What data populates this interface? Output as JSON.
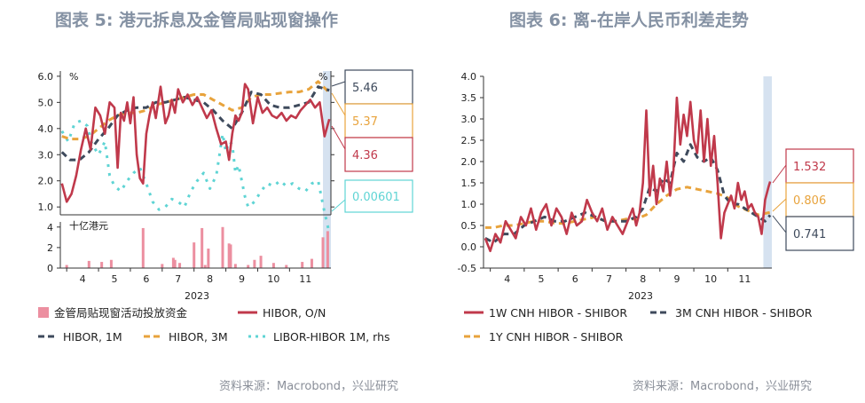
{
  "left": {
    "title": "图表 5: 港元拆息及金管局贴现窗操作",
    "source": "资料来源：Macrobond，兴业研究",
    "top_unit_left": "%",
    "top_unit_right": "%",
    "bottom_unit": "十亿港元",
    "year": "2023",
    "month_labels": [
      "4",
      "5",
      "6",
      "7",
      "8",
      "9",
      "10",
      "11"
    ],
    "legend": {
      "bars": "金管局贴现窗活动投放资金",
      "hibor_on": "HIBOR, O/N",
      "hibor_1m": "HIBOR, 1M",
      "hibor_3m": "HIBOR, 3M",
      "libor_hibor": "LIBOR-HIBOR 1M, rhs"
    },
    "callouts": {
      "hibor_1m": "5.46",
      "hibor_3m": "5.37",
      "hibor_on": "4.36",
      "libor_hibor": "0.00601"
    }
  },
  "right": {
    "title": "图表 6: 离-在岸人民币利差走势",
    "source": "资料来源：Macrobond，兴业研究",
    "year": "2023",
    "month_labels": [
      "4",
      "5",
      "6",
      "7",
      "8",
      "9",
      "10",
      "11"
    ],
    "legend": {
      "s1w": "1W CNH HIBOR - SHIBOR",
      "s3m": "3M CNH HIBOR - SHIBOR",
      "s1y": "1Y CNH HIBOR - SHIBOR"
    },
    "callouts": {
      "s1w": "1.532",
      "s1y": "0.806",
      "s3m": "0.741"
    }
  },
  "colors": {
    "red": "#c0394b",
    "navy": "#3e4a5c",
    "orange": "#e8a33c",
    "cyan": "#5fd4d4",
    "pink": "#ec8fa0",
    "highlight": "#d6e2f0",
    "title": "#8491a3"
  },
  "chart_data": [
    {
      "type": "line",
      "title": "图表 5: 港元拆息及金管局贴现窗操作",
      "xlabel": "2023",
      "x_ticks": [
        "4",
        "5",
        "6",
        "7",
        "8",
        "9",
        "10",
        "11"
      ],
      "x_range": [
        3.3,
        11.8
      ],
      "ylim": [
        0.7,
        6.2
      ],
      "yticks": [
        "1.0",
        "2.0",
        "3.0",
        "4.0",
        "5.0",
        "6.0"
      ],
      "series": [
        {
          "name": "HIBOR, O/N",
          "x": [
            3.35,
            3.5,
            3.65,
            3.8,
            3.95,
            4.1,
            4.25,
            4.4,
            4.55,
            4.7,
            4.85,
            5.0,
            5.1,
            5.2,
            5.3,
            5.4,
            5.5,
            5.6,
            5.7,
            5.8,
            5.9,
            6.0,
            6.1,
            6.2,
            6.3,
            6.45,
            6.6,
            6.7,
            6.8,
            6.9,
            7.0,
            7.15,
            7.3,
            7.45,
            7.6,
            7.75,
            7.9,
            8.05,
            8.2,
            8.35,
            8.5,
            8.6,
            8.7,
            8.8,
            8.9,
            9.0,
            9.1,
            9.2,
            9.35,
            9.5,
            9.65,
            9.8,
            9.95,
            10.1,
            10.25,
            10.4,
            10.55,
            10.7,
            10.85,
            11.0,
            11.15,
            11.3,
            11.45,
            11.6,
            11.75
          ],
          "values": [
            1.9,
            1.2,
            1.5,
            2.2,
            3.2,
            4.0,
            3.2,
            4.8,
            4.5,
            3.8,
            5.0,
            4.8,
            2.5,
            4.6,
            4.3,
            5.0,
            4.2,
            5.2,
            3.0,
            2.1,
            1.9,
            3.8,
            4.5,
            5.0,
            4.4,
            5.6,
            4.2,
            4.5,
            5.1,
            4.6,
            5.5,
            5.0,
            5.3,
            4.9,
            5.2,
            4.8,
            4.4,
            4.7,
            4.0,
            3.4,
            3.5,
            2.8,
            3.8,
            4.5,
            4.3,
            4.6,
            5.7,
            5.5,
            4.2,
            5.2,
            4.6,
            4.8,
            4.5,
            4.4,
            4.6,
            4.3,
            4.5,
            4.4,
            4.7,
            4.9,
            5.1,
            4.8,
            5.0,
            3.7,
            4.36
          ]
        },
        {
          "name": "HIBOR, 1M",
          "x": [
            3.35,
            3.6,
            3.9,
            4.2,
            4.5,
            4.8,
            5.1,
            5.4,
            5.7,
            6.0,
            6.3,
            6.6,
            6.9,
            7.2,
            7.5,
            7.8,
            8.1,
            8.4,
            8.7,
            9.0,
            9.3,
            9.6,
            9.9,
            10.2,
            10.5,
            10.8,
            11.1,
            11.4,
            11.75
          ],
          "values": [
            3.1,
            2.8,
            2.8,
            3.1,
            3.6,
            4.0,
            4.5,
            4.7,
            4.8,
            4.8,
            5.0,
            5.0,
            5.1,
            5.2,
            5.1,
            5.0,
            4.7,
            4.3,
            4.0,
            4.6,
            5.4,
            5.3,
            4.9,
            4.8,
            4.8,
            4.9,
            5.0,
            5.6,
            5.46
          ]
        },
        {
          "name": "HIBOR, 3M",
          "x": [
            3.35,
            3.6,
            3.9,
            4.2,
            4.5,
            4.8,
            5.1,
            5.4,
            5.7,
            6.0,
            6.3,
            6.6,
            6.9,
            7.2,
            7.5,
            7.8,
            8.1,
            8.4,
            8.7,
            9.0,
            9.3,
            9.6,
            9.9,
            10.2,
            10.5,
            10.8,
            11.1,
            11.4,
            11.75
          ],
          "values": [
            3.7,
            3.6,
            3.6,
            3.7,
            4.0,
            4.3,
            4.5,
            4.6,
            4.6,
            4.7,
            4.9,
            5.0,
            5.1,
            5.2,
            5.3,
            5.3,
            5.1,
            4.9,
            4.7,
            4.8,
            5.2,
            5.3,
            5.3,
            5.35,
            5.4,
            5.4,
            5.5,
            5.8,
            5.37
          ]
        },
        {
          "name": "LIBOR-HIBOR 1M, rhs",
          "x": [
            3.35,
            3.55,
            3.75,
            3.95,
            4.15,
            4.3,
            4.5,
            4.7,
            4.85,
            5.0,
            5.2,
            5.4,
            5.6,
            5.8,
            6.0,
            6.2,
            6.4,
            6.6,
            6.8,
            7.0,
            7.2,
            7.4,
            7.6,
            7.8,
            8.0,
            8.2,
            8.4,
            8.5,
            8.6,
            8.7,
            8.8,
            8.9,
            9.0,
            9.1,
            9.2,
            9.4,
            9.6,
            9.8,
            10.0,
            10.2,
            10.4,
            10.6,
            10.8,
            11.0,
            11.2,
            11.4,
            11.6,
            11.75
          ],
          "values": [
            3.9,
            3.5,
            4.2,
            4.3,
            4.1,
            3.4,
            3.0,
            3.5,
            2.2,
            1.8,
            1.6,
            2.0,
            2.3,
            2.5,
            1.9,
            1.2,
            0.9,
            1.0,
            1.3,
            1.2,
            1.0,
            1.6,
            2.0,
            2.3,
            1.7,
            2.2,
            3.8,
            3.1,
            3.5,
            3.4,
            2.3,
            2.6,
            2.0,
            1.4,
            1.0,
            1.2,
            1.6,
            1.9,
            1.8,
            2.0,
            1.8,
            1.9,
            1.7,
            1.6,
            1.9,
            2.0,
            0.8,
            0.00601
          ]
        }
      ]
    },
    {
      "type": "bar",
      "title": "金管局贴现窗活动投放资金",
      "ylabel": "十亿港元",
      "ylim": [
        0,
        4.5
      ],
      "yticks": [
        "0",
        "2",
        "4"
      ],
      "x": [
        3.5,
        4.2,
        4.6,
        4.9,
        5.9,
        6.5,
        6.85,
        6.9,
        7.05,
        7.5,
        7.75,
        7.85,
        7.95,
        8.4,
        8.6,
        8.65,
        8.8,
        9.2,
        9.4,
        9.6,
        10.0,
        10.4,
        10.9,
        11.2,
        11.55,
        11.7
      ],
      "values": [
        0.3,
        0.7,
        0.6,
        0.8,
        3.9,
        0.4,
        1.0,
        0.8,
        0.5,
        2.5,
        3.9,
        0.3,
        1.9,
        4.0,
        2.4,
        2.3,
        0.4,
        0.3,
        0.8,
        1.2,
        0.5,
        0.3,
        0.6,
        0.9,
        3.0,
        3.6
      ]
    },
    {
      "type": "line",
      "title": "图表 6: 离-在岸人民币利差走势",
      "xlabel": "2023",
      "x_ticks": [
        "4",
        "5",
        "6",
        "7",
        "8",
        "9",
        "10",
        "11"
      ],
      "x_range": [
        3.3,
        11.8
      ],
      "ylim": [
        -0.5,
        4.0
      ],
      "yticks": [
        "-0.5",
        "0.0",
        "0.5",
        "1.0",
        "1.5",
        "2.0",
        "2.5",
        "3.0",
        "3.5",
        "4.0"
      ],
      "series": [
        {
          "name": "1W CNH HIBOR - SHIBOR",
          "x": [
            3.35,
            3.5,
            3.65,
            3.8,
            3.95,
            4.1,
            4.25,
            4.4,
            4.55,
            4.7,
            4.85,
            5.0,
            5.15,
            5.3,
            5.45,
            5.6,
            5.75,
            5.9,
            6.05,
            6.2,
            6.35,
            6.5,
            6.65,
            6.8,
            6.95,
            7.1,
            7.25,
            7.4,
            7.55,
            7.7,
            7.8,
            7.9,
            8.0,
            8.1,
            8.2,
            8.3,
            8.4,
            8.5,
            8.6,
            8.7,
            8.8,
            8.9,
            9.0,
            9.1,
            9.2,
            9.3,
            9.4,
            9.5,
            9.6,
            9.7,
            9.8,
            9.9,
            10.0,
            10.1,
            10.2,
            10.3,
            10.4,
            10.5,
            10.6,
            10.7,
            10.8,
            10.9,
            11.0,
            11.1,
            11.2,
            11.3,
            11.4,
            11.5,
            11.6,
            11.7,
            11.75
          ],
          "values": [
            0.2,
            -0.1,
            0.3,
            0.1,
            0.6,
            0.4,
            0.2,
            0.7,
            0.5,
            0.9,
            0.4,
            0.8,
            1.0,
            0.5,
            0.9,
            0.7,
            0.3,
            0.8,
            0.5,
            0.6,
            1.1,
            0.8,
            0.6,
            0.9,
            0.4,
            0.7,
            0.5,
            0.3,
            0.6,
            0.9,
            0.5,
            0.8,
            1.5,
            3.2,
            1.2,
            1.9,
            1.0,
            1.6,
            1.3,
            2.0,
            1.2,
            1.8,
            3.5,
            2.4,
            3.1,
            2.6,
            3.4,
            2.5,
            2.2,
            3.2,
            2.0,
            3.0,
            1.9,
            2.6,
            1.5,
            0.2,
            0.8,
            1.0,
            1.2,
            0.9,
            1.5,
            1.1,
            1.3,
            0.9,
            1.0,
            0.8,
            0.7,
            0.3,
            1.1,
            1.4,
            1.532
          ]
        },
        {
          "name": "3M CNH HIBOR - SHIBOR",
          "x": [
            3.35,
            3.6,
            3.9,
            4.2,
            4.5,
            4.8,
            5.1,
            5.4,
            5.7,
            6.0,
            6.3,
            6.6,
            6.9,
            7.2,
            7.5,
            7.8,
            8.0,
            8.2,
            8.4,
            8.6,
            8.8,
            9.0,
            9.2,
            9.4,
            9.6,
            9.8,
            10.0,
            10.2,
            10.4,
            10.6,
            10.8,
            11.0,
            11.2,
            11.4,
            11.6,
            11.75
          ],
          "values": [
            0.2,
            0.1,
            0.3,
            0.3,
            0.5,
            0.6,
            0.7,
            0.6,
            0.6,
            0.7,
            0.8,
            0.7,
            0.6,
            0.6,
            0.6,
            0.7,
            0.9,
            1.4,
            1.3,
            1.6,
            1.5,
            2.2,
            2.0,
            2.4,
            2.1,
            2.0,
            2.1,
            1.8,
            1.2,
            1.0,
            1.0,
            0.9,
            0.8,
            0.7,
            0.6,
            0.741
          ]
        },
        {
          "name": "1Y CNH HIBOR - SHIBOR",
          "x": [
            3.35,
            3.6,
            3.9,
            4.2,
            4.5,
            4.8,
            5.1,
            5.4,
            5.7,
            6.0,
            6.3,
            6.6,
            6.9,
            7.2,
            7.5,
            7.8,
            8.1,
            8.4,
            8.7,
            9.0,
            9.3,
            9.6,
            9.9,
            10.2,
            10.5,
            10.8,
            11.1,
            11.4,
            11.75
          ],
          "values": [
            0.45,
            0.45,
            0.5,
            0.5,
            0.55,
            0.6,
            0.6,
            0.55,
            0.55,
            0.6,
            0.65,
            0.7,
            0.6,
            0.6,
            0.65,
            0.65,
            0.75,
            1.0,
            1.2,
            1.35,
            1.4,
            1.35,
            1.3,
            1.25,
            1.15,
            0.95,
            0.85,
            0.75,
            0.806
          ]
        }
      ]
    }
  ]
}
